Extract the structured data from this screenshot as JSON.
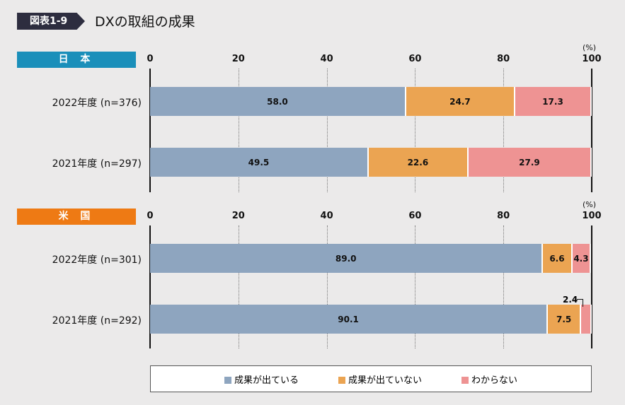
{
  "figure": {
    "tag": "図表1-9",
    "title": "DXの取組の成果"
  },
  "chart_data": [
    {
      "type": "bar",
      "orientation": "horizontal-stacked",
      "panel_label": "日 本",
      "unit_label": "(%)",
      "xlim": [
        0,
        100
      ],
      "ticks": [
        "0",
        "20",
        "40",
        "60",
        "80",
        "100"
      ],
      "categories": [
        "2022年度 (n=376)",
        "2021年度 (n=297)"
      ],
      "series": [
        {
          "name": "成果が出ている",
          "values": [
            58.0,
            49.5
          ]
        },
        {
          "name": "成果が出ていない",
          "values": [
            24.7,
            22.6
          ]
        },
        {
          "name": "わからない",
          "values": [
            17.3,
            27.9
          ]
        }
      ],
      "grid": true
    },
    {
      "type": "bar",
      "orientation": "horizontal-stacked",
      "panel_label": "米 国",
      "unit_label": "(%)",
      "xlim": [
        0,
        100
      ],
      "ticks": [
        "0",
        "20",
        "40",
        "60",
        "80",
        "100"
      ],
      "categories": [
        "2022年度 (n=301)",
        "2021年度 (n=292)"
      ],
      "series": [
        {
          "name": "成果が出ている",
          "values": [
            89.0,
            90.1
          ]
        },
        {
          "name": "成果が出ていない",
          "values": [
            6.6,
            7.5
          ]
        },
        {
          "name": "わからない",
          "values": [
            4.3,
            2.4
          ]
        }
      ],
      "grid": true
    }
  ],
  "colors": {
    "series": [
      "#8ea5bf",
      "#eba452",
      "#ee9393"
    ],
    "panels": [
      "#1a8fba",
      "#ee7a14"
    ]
  },
  "legend": [
    {
      "label": "成果が出ている"
    },
    {
      "label": "成果が出ていない"
    },
    {
      "label": "わからない"
    }
  ]
}
